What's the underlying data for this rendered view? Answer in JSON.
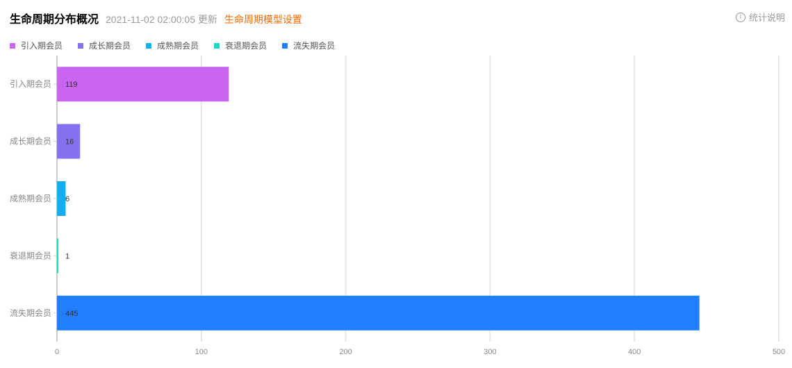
{
  "header": {
    "title": "生命周期分布概况",
    "timestamp": "2021-11-02 02:00:05 更新",
    "settings_link": "生命周期模型设置",
    "help_label": "统计说明",
    "help_icon": "info-circle-icon"
  },
  "chart_data": {
    "type": "bar",
    "orientation": "horizontal",
    "categories": [
      "引入期会员",
      "成长期会员",
      "成熟期会员",
      "衰退期会员",
      "流失期会员"
    ],
    "values": [
      119,
      16,
      6,
      1,
      445
    ],
    "colors": [
      "#c965f0",
      "#8470f0",
      "#10b0f0",
      "#20d8c8",
      "#207eff"
    ],
    "xlim": [
      0,
      500
    ],
    "xticks": [
      0,
      100,
      200,
      300,
      400,
      500
    ],
    "grid": true,
    "legend": {
      "position": "top-left",
      "entries": [
        "引入期会员",
        "成长期会员",
        "成熟期会员",
        "衰退期会员",
        "流失期会员"
      ]
    }
  }
}
